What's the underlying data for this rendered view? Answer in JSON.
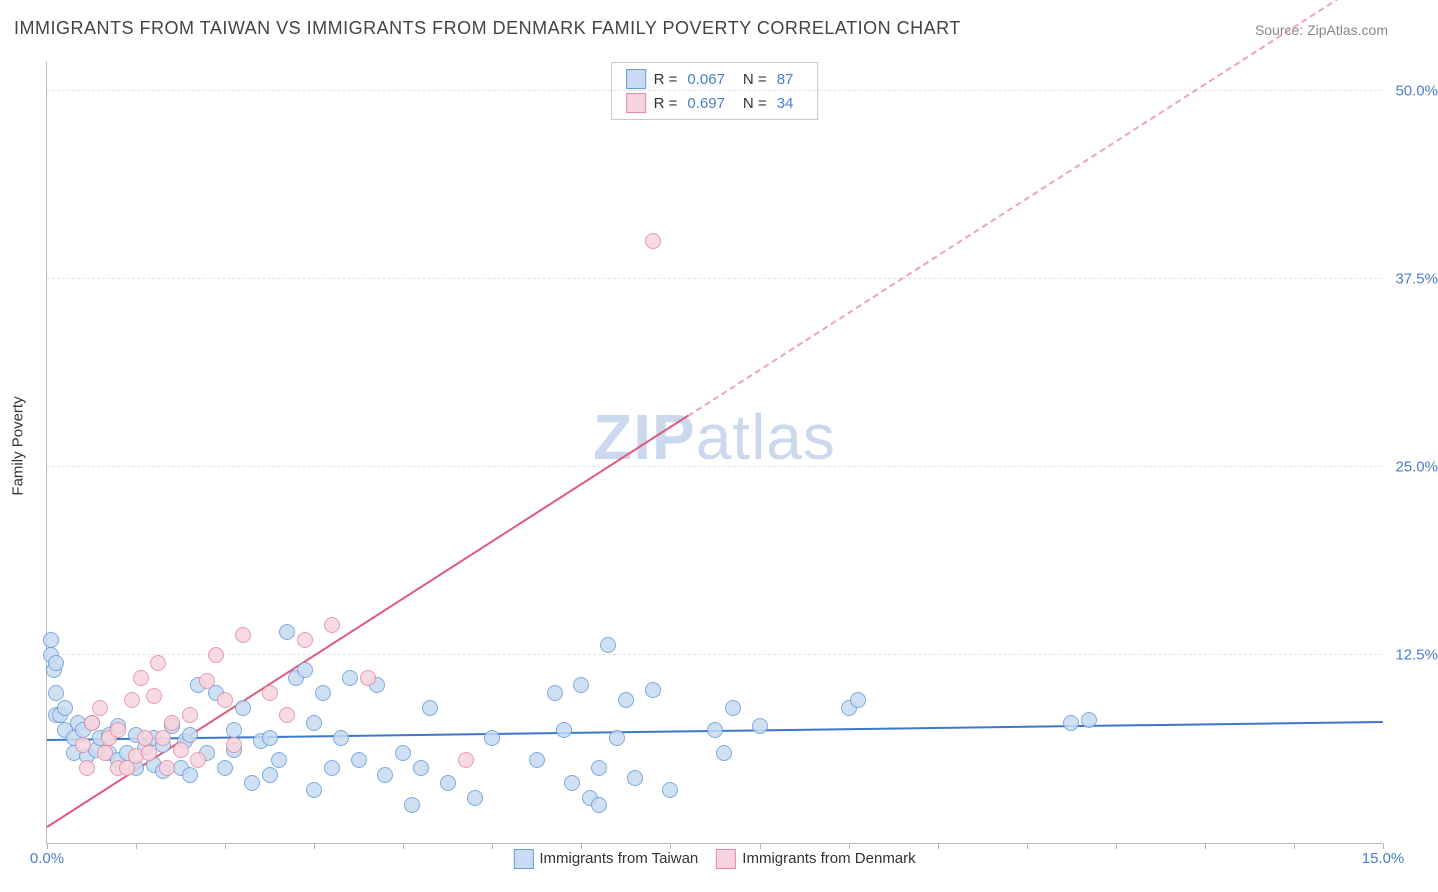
{
  "title": "IMMIGRANTS FROM TAIWAN VS IMMIGRANTS FROM DENMARK FAMILY POVERTY CORRELATION CHART",
  "source_label": "Source:",
  "source_value": "ZipAtlas.com",
  "ylabel": "Family Poverty",
  "watermark_bold": "ZIP",
  "watermark_rest": "atlas",
  "chart": {
    "type": "scatter",
    "xlim": [
      0,
      15
    ],
    "ylim": [
      0,
      52
    ],
    "xtick_positions": [
      0,
      1,
      2,
      3,
      4,
      5,
      6,
      7,
      8,
      9,
      10,
      11,
      12,
      13,
      14,
      15
    ],
    "xtick_labels": {
      "0": "0.0%",
      "15": "15.0%"
    },
    "ytick_positions": [
      12.5,
      25.0,
      37.5,
      50.0
    ],
    "ytick_labels": [
      "12.5%",
      "25.0%",
      "37.5%",
      "50.0%"
    ],
    "grid_color": "#e2e2e2",
    "axis_color": "#b8b8b8",
    "tick_label_color": "#4a7ec9",
    "background_color": "#ffffff"
  },
  "series": [
    {
      "name": "Immigrants from Taiwan",
      "fill": "#c7dbf2",
      "stroke": "#6a9cd8",
      "marker_radius": 8,
      "r_value": "0.067",
      "n_value": "87",
      "trend": {
        "x1": 0,
        "y1": 6.8,
        "x2": 15,
        "y2": 8.0,
        "solid_until_x": 15,
        "color": "#3d78c9",
        "width": 2
      },
      "points": [
        [
          0.05,
          13.5
        ],
        [
          0.05,
          12.5
        ],
        [
          0.08,
          11.5
        ],
        [
          0.1,
          12.0
        ],
        [
          0.1,
          10.0
        ],
        [
          0.1,
          8.5
        ],
        [
          0.15,
          8.5
        ],
        [
          0.2,
          9.0
        ],
        [
          0.2,
          7.5
        ],
        [
          0.3,
          7.0
        ],
        [
          0.3,
          6.0
        ],
        [
          0.35,
          8.0
        ],
        [
          0.4,
          7.5
        ],
        [
          0.45,
          5.8
        ],
        [
          0.5,
          8.0
        ],
        [
          0.55,
          6.2
        ],
        [
          0.6,
          7.0
        ],
        [
          0.7,
          6.0
        ],
        [
          0.7,
          7.2
        ],
        [
          0.8,
          5.5
        ],
        [
          0.8,
          7.8
        ],
        [
          0.9,
          6.0
        ],
        [
          1.0,
          7.2
        ],
        [
          1.0,
          5.0
        ],
        [
          1.1,
          6.3
        ],
        [
          1.2,
          7.0
        ],
        [
          1.2,
          5.2
        ],
        [
          1.3,
          4.8
        ],
        [
          1.3,
          6.5
        ],
        [
          1.4,
          7.8
        ],
        [
          1.5,
          5.0
        ],
        [
          1.55,
          6.8
        ],
        [
          1.6,
          7.2
        ],
        [
          1.6,
          4.5
        ],
        [
          1.7,
          10.5
        ],
        [
          1.8,
          6.0
        ],
        [
          1.9,
          10.0
        ],
        [
          2.0,
          5.0
        ],
        [
          2.1,
          6.2
        ],
        [
          2.1,
          7.5
        ],
        [
          2.2,
          9.0
        ],
        [
          2.3,
          4.0
        ],
        [
          2.4,
          6.8
        ],
        [
          2.5,
          7.0
        ],
        [
          2.5,
          4.5
        ],
        [
          2.6,
          5.5
        ],
        [
          2.7,
          14.0
        ],
        [
          2.8,
          11.0
        ],
        [
          2.9,
          11.5
        ],
        [
          3.0,
          8.0
        ],
        [
          3.0,
          3.5
        ],
        [
          3.1,
          10.0
        ],
        [
          3.2,
          5.0
        ],
        [
          3.3,
          7.0
        ],
        [
          3.4,
          11.0
        ],
        [
          3.5,
          5.5
        ],
        [
          3.7,
          10.5
        ],
        [
          3.8,
          4.5
        ],
        [
          4.0,
          6.0
        ],
        [
          4.1,
          2.5
        ],
        [
          4.2,
          5.0
        ],
        [
          4.3,
          9.0
        ],
        [
          4.5,
          4.0
        ],
        [
          4.8,
          3.0
        ],
        [
          5.0,
          7.0
        ],
        [
          5.5,
          5.5
        ],
        [
          5.7,
          10.0
        ],
        [
          5.8,
          7.5
        ],
        [
          5.9,
          4.0
        ],
        [
          6.0,
          10.5
        ],
        [
          6.1,
          3.0
        ],
        [
          6.2,
          5.0
        ],
        [
          6.2,
          2.5
        ],
        [
          6.3,
          13.2
        ],
        [
          6.4,
          7.0
        ],
        [
          6.5,
          9.5
        ],
        [
          6.6,
          4.3
        ],
        [
          6.8,
          10.2
        ],
        [
          7.0,
          3.5
        ],
        [
          7.5,
          7.5
        ],
        [
          7.6,
          6.0
        ],
        [
          7.7,
          9.0
        ],
        [
          8.0,
          7.8
        ],
        [
          9.0,
          9.0
        ],
        [
          9.1,
          9.5
        ],
        [
          11.5,
          8.0
        ],
        [
          11.7,
          8.2
        ]
      ]
    },
    {
      "name": "Immigrants from Denmark",
      "fill": "#f7d4dd",
      "stroke": "#e38aa3",
      "marker_radius": 8,
      "r_value": "0.697",
      "n_value": "34",
      "trend": {
        "x1": 0,
        "y1": 1.0,
        "x2": 15,
        "y2": 58.0,
        "solid_until_x": 7.2,
        "color": "#e05a7d",
        "width": 2
      },
      "points": [
        [
          0.4,
          6.5
        ],
        [
          0.45,
          5.0
        ],
        [
          0.5,
          8.0
        ],
        [
          0.6,
          9.0
        ],
        [
          0.65,
          6.0
        ],
        [
          0.7,
          7.0
        ],
        [
          0.8,
          5.0
        ],
        [
          0.8,
          7.5
        ],
        [
          0.9,
          5.0
        ],
        [
          0.95,
          9.5
        ],
        [
          1.0,
          5.8
        ],
        [
          1.05,
          11.0
        ],
        [
          1.1,
          7.0
        ],
        [
          1.15,
          6.0
        ],
        [
          1.2,
          9.8
        ],
        [
          1.25,
          12.0
        ],
        [
          1.3,
          7.0
        ],
        [
          1.35,
          5.0
        ],
        [
          1.4,
          8.0
        ],
        [
          1.5,
          6.2
        ],
        [
          1.6,
          8.5
        ],
        [
          1.7,
          5.5
        ],
        [
          1.8,
          10.8
        ],
        [
          1.9,
          12.5
        ],
        [
          2.0,
          9.5
        ],
        [
          2.1,
          6.5
        ],
        [
          2.2,
          13.8
        ],
        [
          2.5,
          10.0
        ],
        [
          2.7,
          8.5
        ],
        [
          2.9,
          13.5
        ],
        [
          3.2,
          14.5
        ],
        [
          3.6,
          11.0
        ],
        [
          4.7,
          5.5
        ],
        [
          6.8,
          40.0
        ]
      ]
    }
  ],
  "legend_top": {
    "r_label": "R =",
    "n_label": "N ="
  },
  "legend_bottom_labels": [
    "Immigrants from Taiwan",
    "Immigrants from Denmark"
  ]
}
